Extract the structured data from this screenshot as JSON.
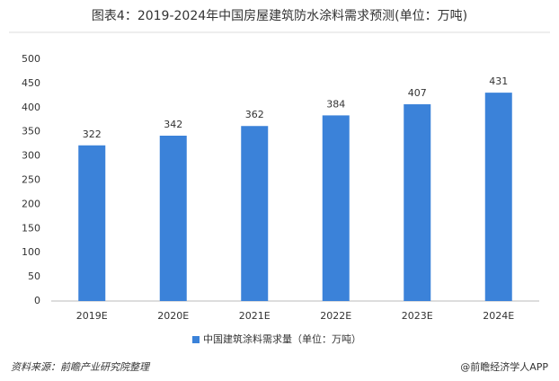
{
  "chart_data": {
    "type": "bar",
    "title": "图表4：2019-2024年中国房屋建筑防水涂料需求预测(单位：万吨)",
    "categories": [
      "2019E",
      "2020E",
      "2021E",
      "2022E",
      "2023E",
      "2024E"
    ],
    "series": [
      {
        "name": "中国建筑涂料需求量（单位：万吨）",
        "color": "#3b82d9",
        "values": [
          322,
          342,
          362,
          384,
          407,
          431
        ]
      }
    ],
    "ylim": [
      0,
      500
    ],
    "yticks": [
      0,
      50,
      100,
      150,
      200,
      250,
      300,
      350,
      400,
      450,
      500
    ],
    "grid": false,
    "legend": "bottom"
  },
  "footer": {
    "source": "资料来源：前瞻产业研究院整理",
    "credit": "@前瞻经济学人APP"
  }
}
